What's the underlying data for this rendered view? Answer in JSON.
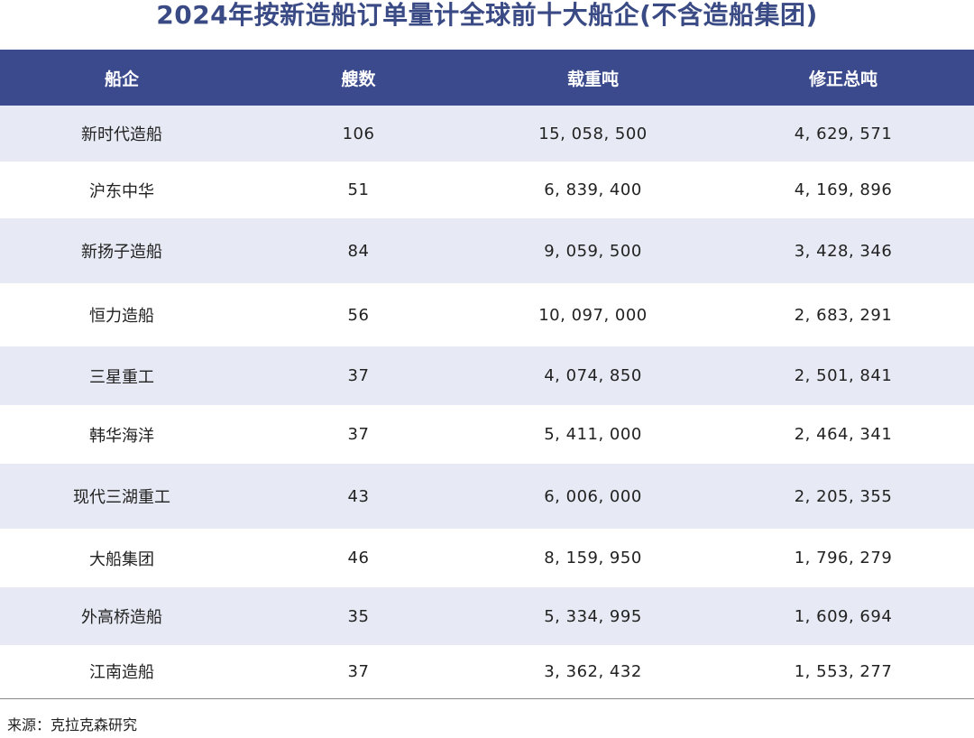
{
  "title": "2024年按新造船订单量计全球前十大船企(不含造船集团)",
  "table": {
    "headers": [
      "船企",
      "艘数",
      "载重吨",
      "修正总吨"
    ],
    "rows": [
      {
        "company": "新时代造船",
        "ships": "106",
        "dwt": "15, 058, 500",
        "cgt": "4, 629, 571"
      },
      {
        "company": "沪东中华",
        "ships": "51",
        "dwt": "6, 839, 400",
        "cgt": "4, 169, 896"
      },
      {
        "company": "新扬子造船",
        "ships": "84",
        "dwt": "9, 059, 500",
        "cgt": "3, 428, 346"
      },
      {
        "company": "恒力造船",
        "ships": "56",
        "dwt": "10, 097, 000",
        "cgt": "2, 683, 291"
      },
      {
        "company": "三星重工",
        "ships": "37",
        "dwt": "4, 074, 850",
        "cgt": "2, 501, 841"
      },
      {
        "company": "韩华海洋",
        "ships": "37",
        "dwt": "5, 411, 000",
        "cgt": "2, 464, 341"
      },
      {
        "company": "现代三湖重工",
        "ships": "43",
        "dwt": "6, 006, 000",
        "cgt": "2, 205, 355"
      },
      {
        "company": "大船集团",
        "ships": "46",
        "dwt": "8, 159, 950",
        "cgt": "1, 796, 279"
      },
      {
        "company": "外高桥造船",
        "ships": "35",
        "dwt": "5, 334, 995",
        "cgt": "1, 609, 694"
      },
      {
        "company": "江南造船",
        "ships": "37",
        "dwt": "3, 362, 432",
        "cgt": "1, 553, 277"
      }
    ]
  },
  "source": "来源：克拉克森研究",
  "colors": {
    "header_bg": "#3b4a8c",
    "title": "#3a4a85",
    "stripe": "#e7eaf4"
  }
}
